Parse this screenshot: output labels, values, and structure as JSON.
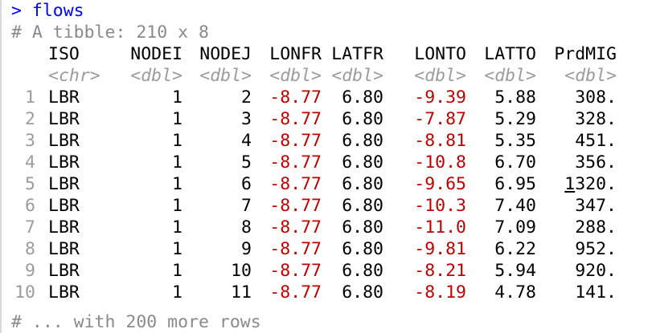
{
  "console": {
    "prompt_symbol": ">",
    "command": "flows",
    "tibble_header": "# A tibble: 210 x 8",
    "footer": "# ... with 200 more rows"
  },
  "table": {
    "columns": [
      "ISO",
      "NODEI",
      "NODEJ",
      "LONFR",
      "LATFR",
      "LONTO",
      "LATTO",
      "PrdMIG"
    ],
    "types": [
      "<chr>",
      "<dbl>",
      "<dbl>",
      "<dbl>",
      "<dbl>",
      "<dbl>",
      "<dbl>",
      "<dbl>"
    ],
    "rows": [
      {
        "n": "1",
        "ISO": "LBR",
        "NODEI": "1",
        "NODEJ": "2",
        "LONFR": "-8.77",
        "LATFR": "6.80",
        "LONTO": "-9.39",
        "LATTO": "5.88",
        "PrdMIG": "308."
      },
      {
        "n": "2",
        "ISO": "LBR",
        "NODEI": "1",
        "NODEJ": "3",
        "LONFR": "-8.77",
        "LATFR": "6.80",
        "LONTO": "-7.87",
        "LATTO": "5.29",
        "PrdMIG": "328."
      },
      {
        "n": "3",
        "ISO": "LBR",
        "NODEI": "1",
        "NODEJ": "4",
        "LONFR": "-8.77",
        "LATFR": "6.80",
        "LONTO": "-8.81",
        "LATTO": "5.35",
        "PrdMIG": "451."
      },
      {
        "n": "4",
        "ISO": "LBR",
        "NODEI": "1",
        "NODEJ": "5",
        "LONFR": "-8.77",
        "LATFR": "6.80",
        "LONTO": "-10.8",
        "LATTO": "6.70",
        "PrdMIG": "356."
      },
      {
        "n": "5",
        "ISO": "LBR",
        "NODEI": "1",
        "NODEJ": "6",
        "LONFR": "-8.77",
        "LATFR": "6.80",
        "LONTO": "-9.65",
        "LATTO": "6.95",
        "PrdMIG": "1320."
      },
      {
        "n": "6",
        "ISO": "LBR",
        "NODEI": "1",
        "NODEJ": "7",
        "LONFR": "-8.77",
        "LATFR": "6.80",
        "LONTO": "-10.3",
        "LATTO": "7.40",
        "PrdMIG": "347."
      },
      {
        "n": "7",
        "ISO": "LBR",
        "NODEI": "1",
        "NODEJ": "8",
        "LONFR": "-8.77",
        "LATFR": "6.80",
        "LONTO": "-11.0",
        "LATTO": "7.09",
        "PrdMIG": "288."
      },
      {
        "n": "8",
        "ISO": "LBR",
        "NODEI": "1",
        "NODEJ": "9",
        "LONFR": "-8.77",
        "LATFR": "6.80",
        "LONTO": "-9.81",
        "LATTO": "6.22",
        "PrdMIG": "952."
      },
      {
        "n": "9",
        "ISO": "LBR",
        "NODEI": "1",
        "NODEJ": "10",
        "LONFR": "-8.77",
        "LATFR": "6.80",
        "LONTO": "-8.21",
        "LATTO": "5.94",
        "PrdMIG": "920."
      },
      {
        "n": "10",
        "ISO": "LBR",
        "NODEI": "1",
        "NODEJ": "11",
        "LONFR": "-8.77",
        "LATFR": "6.80",
        "LONTO": "-8.19",
        "LATTO": "4.78",
        "PrdMIG": "141."
      }
    ]
  },
  "colors": {
    "prompt": "#0000ff",
    "negative_number": "#c00000",
    "muted": "#9c9c9c"
  }
}
